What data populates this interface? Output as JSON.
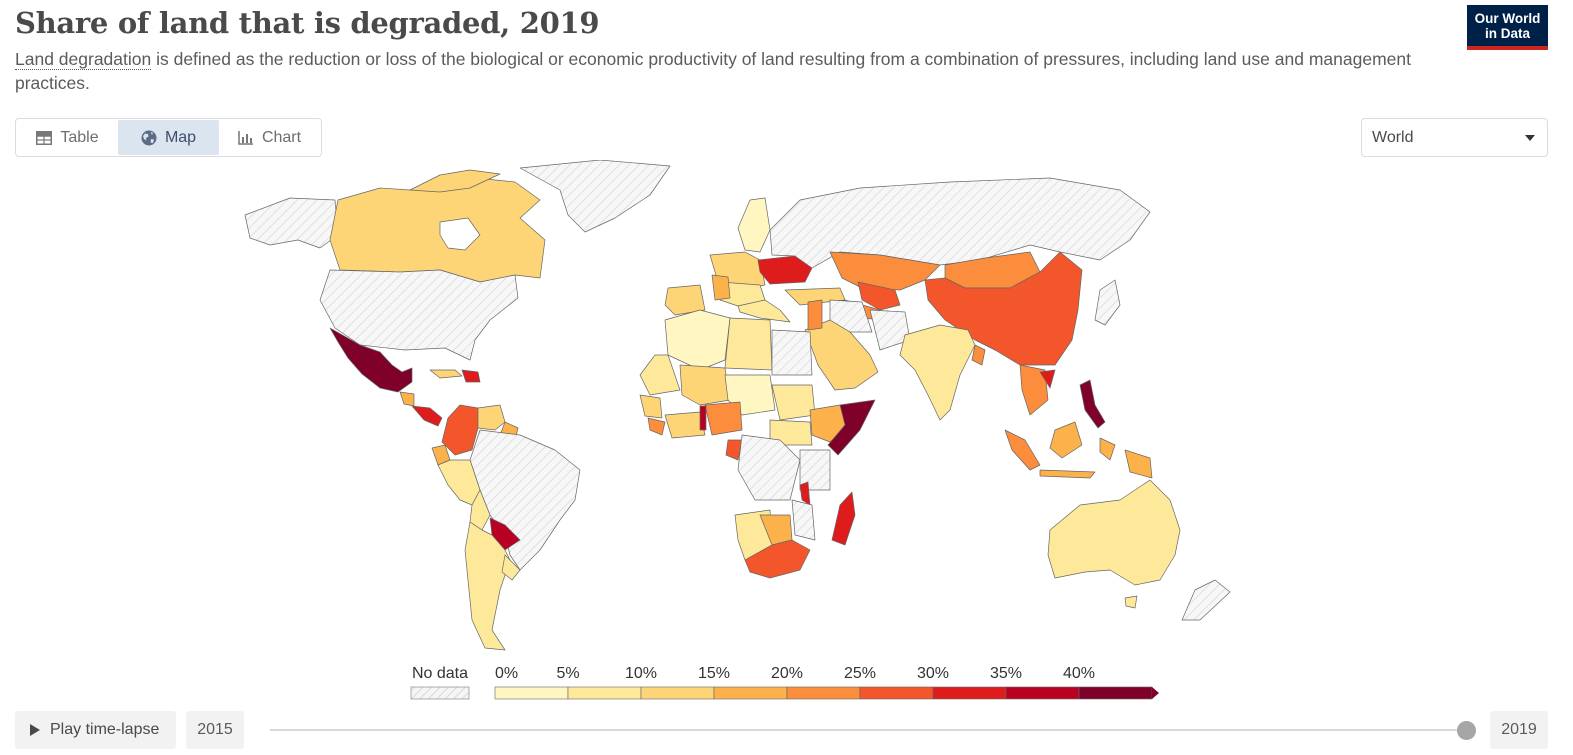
{
  "header": {
    "title": "Share of land that is degraded, 2019",
    "subtitle_term": "Land degradation",
    "subtitle_rest": " is defined as the reduction or loss of the biological or economic productivity of land resulting from a combination of pressures, including land use and management practices.",
    "logo_line1": "Our World",
    "logo_line2": "in Data"
  },
  "tabs": [
    {
      "label": "Table",
      "icon": "table-icon",
      "active": false
    },
    {
      "label": "Map",
      "icon": "globe-icon",
      "active": true
    },
    {
      "label": "Chart",
      "icon": "chart-icon",
      "active": false
    }
  ],
  "region_select": {
    "value": "World"
  },
  "legend": {
    "no_data_label": "No data",
    "bins": [
      0,
      5,
      10,
      15,
      20,
      25,
      30,
      35,
      40
    ],
    "tick_labels": [
      "0%",
      "5%",
      "10%",
      "15%",
      "20%",
      "25%",
      "30%",
      "35%",
      "40%"
    ],
    "colors": [
      "#fff6c2",
      "#fee99a",
      "#fed576",
      "#fcb14a",
      "#fb8d3d",
      "#f3562b",
      "#df1c1c",
      "#b80022",
      "#7f0029"
    ],
    "no_data_color": "#d9d9d9"
  },
  "timeline": {
    "play_label": "Play time-lapse",
    "start_year": "2015",
    "end_year": "2019",
    "selected_fraction": 1.0
  },
  "colors": {
    "no_data_fill": "#f3f3f3",
    "border": "#5c5c5c",
    "logo_bg": "#002147",
    "logo_accent": "#ce261e"
  }
}
